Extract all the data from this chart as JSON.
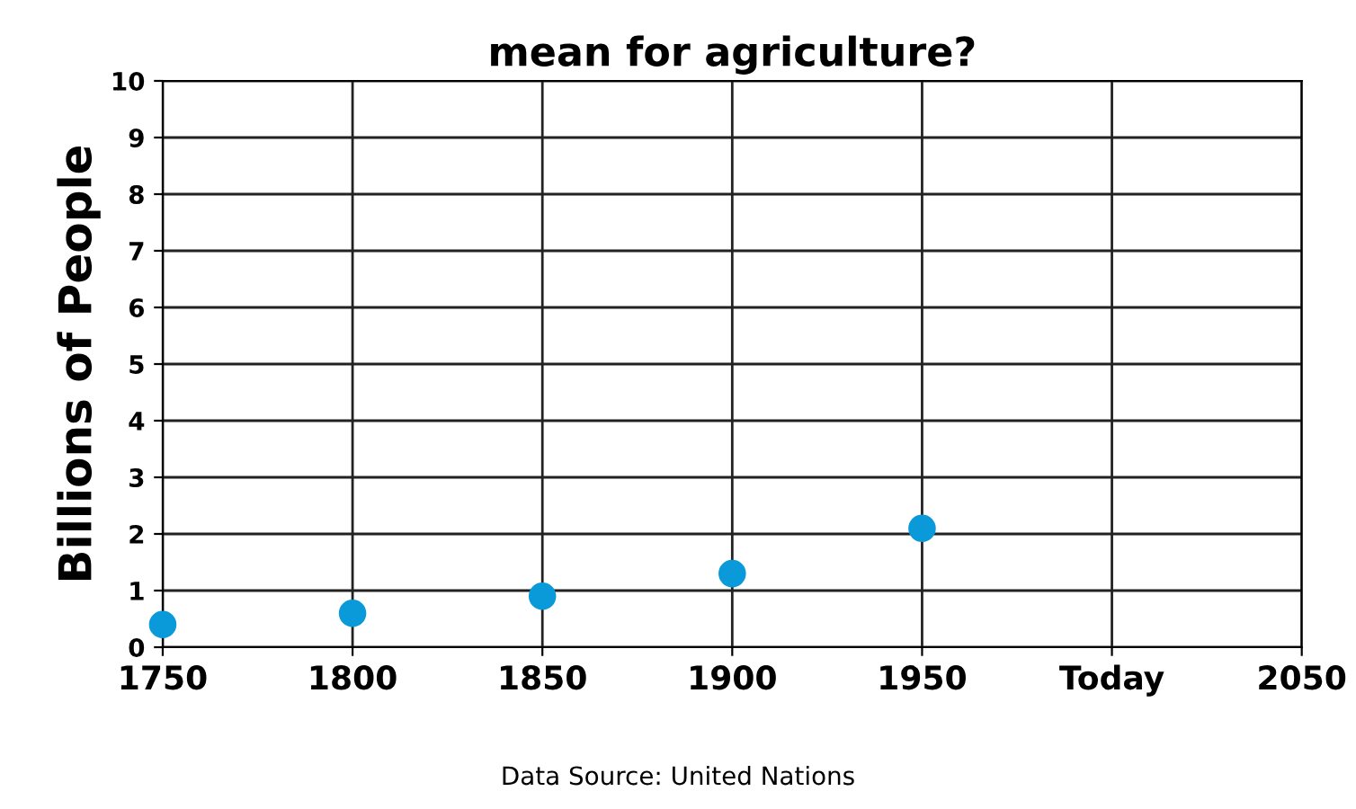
{
  "chart_data": {
    "type": "scatter",
    "title": "mean for agriculture?",
    "ylabel": "Billions of People",
    "categories": [
      "1750",
      "1800",
      "1850",
      "1900",
      "1950",
      "Today",
      "2050"
    ],
    "series": [
      {
        "color": "#0a9ad9",
        "values": [
          0.4,
          0.6,
          0.9,
          1.3,
          2.1,
          null,
          null
        ]
      }
    ],
    "ylim": [
      0,
      10
    ],
    "yticks": [
      0,
      1,
      2,
      3,
      4,
      5,
      6,
      7,
      8,
      9,
      10
    ],
    "grid": true,
    "marker": "circle",
    "annotations": [
      "Data Source: United Nations"
    ]
  }
}
